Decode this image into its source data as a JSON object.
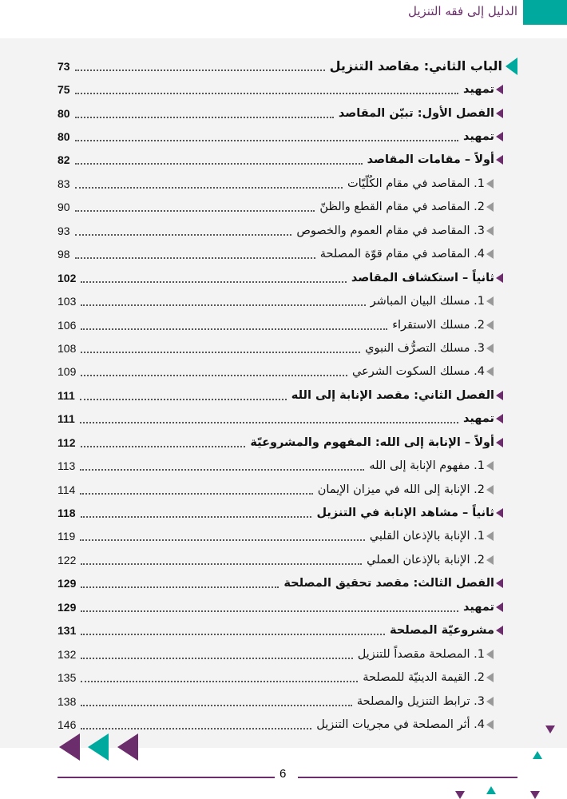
{
  "header": {
    "title": "الدليل إلى فقه التنزيل"
  },
  "toc": [
    {
      "level": 0,
      "title": "الباب الثاني: مقاصد التنزيل",
      "page": "73"
    },
    {
      "level": 1,
      "title": "تمهيد",
      "page": "75"
    },
    {
      "level": 1,
      "title": "الفصل الأول: تبيّن المقاصد",
      "page": "80"
    },
    {
      "level": 1,
      "title": "تمهيد",
      "page": "80"
    },
    {
      "level": 1,
      "title": "أولاً – مقامات المقاصد",
      "page": "82"
    },
    {
      "level": 2,
      "title": "1. المقاصد في مقام الكُلّيّات",
      "page": "83"
    },
    {
      "level": 2,
      "title": "2. المقاصد في مقام القطع والظنّ",
      "page": "90"
    },
    {
      "level": 2,
      "title": "3. المقاصد في مقام العموم والخصوص",
      "page": "93"
    },
    {
      "level": 2,
      "title": "4. المقاصد في مقام قوّة المصلحة",
      "page": "98"
    },
    {
      "level": 1,
      "title": "ثانياً – استكشاف المقاصد",
      "page": "102"
    },
    {
      "level": 2,
      "title": "1. مسلك البيان المباشر",
      "page": "103"
    },
    {
      "level": 2,
      "title": "2. مسلك الاستقراء",
      "page": "106"
    },
    {
      "level": 2,
      "title": "3. مسلك التصرُّف النبوي",
      "page": "108"
    },
    {
      "level": 2,
      "title": "4. مسلك السكوت الشرعي",
      "page": "109"
    },
    {
      "level": 1,
      "title": "الفصل الثاني: مقصد الإنابة إلى الله",
      "page": "111"
    },
    {
      "level": 1,
      "title": "تمهيد",
      "page": "111"
    },
    {
      "level": 1,
      "title": "أولاً – الإنابة إلى الله: المفهوم والمشروعيّة",
      "page": "112"
    },
    {
      "level": 2,
      "title": "1. مفهوم الإنابة إلى الله",
      "page": "113"
    },
    {
      "level": 2,
      "title": "2. الإنابة إلى الله في ميزان الإيمان",
      "page": "114"
    },
    {
      "level": 1,
      "title": "ثانياً – مشاهد الإنابة في التنزيل",
      "page": "118"
    },
    {
      "level": 2,
      "title": "1. الإنابة بالإذعان القلبي",
      "page": "119"
    },
    {
      "level": 2,
      "title": "2. الإنابة بالإذعان العملي",
      "page": "122"
    },
    {
      "level": 1,
      "title": "الفصل الثالث: مقصد تحقيق المصلحة",
      "page": "129"
    },
    {
      "level": 1,
      "title": "تمهيد",
      "page": "129"
    },
    {
      "level": 1,
      "title": "مشروعيّة المصلحة",
      "page": "131"
    },
    {
      "level": 2,
      "title": "1. المصلحة مقصداً للتنزيل",
      "page": "132"
    },
    {
      "level": 2,
      "title": "2. القيمة الدينيّة للمصلحة",
      "page": "135"
    },
    {
      "level": 2,
      "title": "3. ترابط التنزيل والمصلحة",
      "page": "138"
    },
    {
      "level": 2,
      "title": "4. أثر المصلحة في مجريات التنزيل",
      "page": "146"
    }
  ],
  "footer": {
    "page_number": "6"
  },
  "colors": {
    "teal": "#00a99d",
    "purple": "#6b2d6b",
    "panel": "#f3f3f3"
  }
}
